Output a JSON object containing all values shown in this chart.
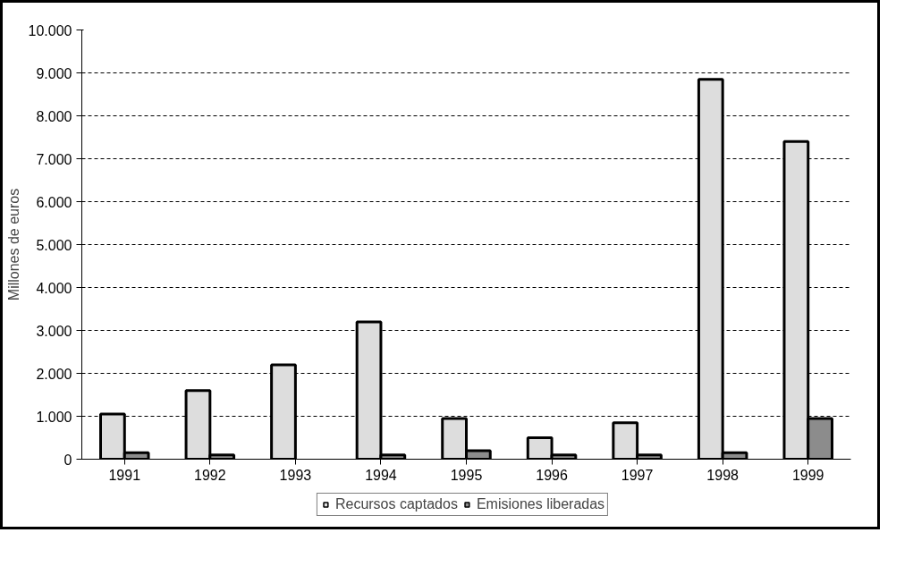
{
  "chart_data": {
    "type": "bar",
    "ylabel": "Millones de euros",
    "categories": [
      "1991",
      "1992",
      "1993",
      "1994",
      "1995",
      "1996",
      "1997",
      "1998",
      "1999"
    ],
    "series": [
      {
        "name": "Recursos captados",
        "color": "#dddddd",
        "values": [
          1050,
          1600,
          2200,
          3200,
          950,
          500,
          850,
          8850,
          7400
        ]
      },
      {
        "name": "Emisiones liberadas",
        "color": "#8c8c8c",
        "values": [
          150,
          100,
          null,
          100,
          200,
          100,
          100,
          150,
          950
        ]
      }
    ],
    "ylim": [
      0,
      10000
    ],
    "yticks": [
      {
        "value": 0,
        "label": "0"
      },
      {
        "value": 1000,
        "label": "1.000"
      },
      {
        "value": 2000,
        "label": "2.000"
      },
      {
        "value": 3000,
        "label": "3.000"
      },
      {
        "value": 4000,
        "label": "4.000"
      },
      {
        "value": 5000,
        "label": "5.000"
      },
      {
        "value": 6000,
        "label": "6.000"
      },
      {
        "value": 7000,
        "label": "7.000"
      },
      {
        "value": 8000,
        "label": "8.000"
      },
      {
        "value": 9000,
        "label": "9.000"
      },
      {
        "value": 10000,
        "label": "10.000"
      }
    ],
    "grid": "y",
    "legend": "bottom"
  }
}
